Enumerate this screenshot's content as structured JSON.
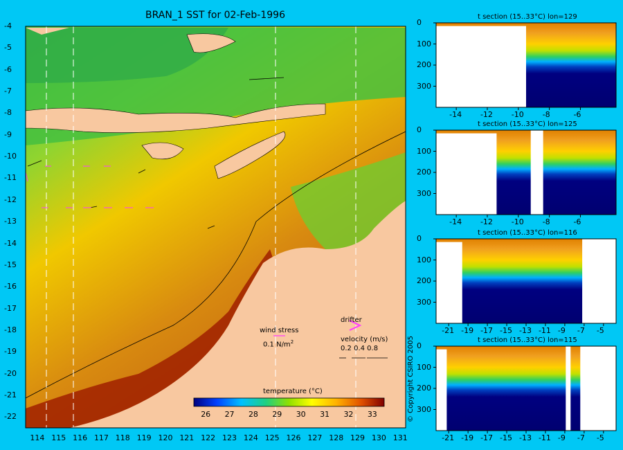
{
  "map": {
    "title": "BRAN_1 SST for 02-Feb-1996",
    "lat_ticks": [
      "-4",
      "-5",
      "-6",
      "-7",
      "-8",
      "-9",
      "-10",
      "-11",
      "-12",
      "-13",
      "-14",
      "-15",
      "-16",
      "-17",
      "-18",
      "-19",
      "-20",
      "-21",
      "-22"
    ],
    "lon_ticks": [
      "114",
      "115",
      "116",
      "117",
      "118",
      "119",
      "120",
      "121",
      "122",
      "123",
      "124",
      "125",
      "126",
      "127",
      "128",
      "129",
      "130",
      "131"
    ],
    "wind_label": "wind stress",
    "wind_value": "0.1 N/m",
    "wind_unit_sup": "2",
    "drifter_label": "drifter",
    "velocity_label": "velocity (m/s)",
    "velocity_scale": "0.2 0.4 0.8",
    "colorbar_title": "temperature (°C)",
    "colorbar_ticks": [
      "26",
      "27",
      "28",
      "29",
      "30",
      "31",
      "32",
      "33"
    ],
    "colors": {
      "background": "#00c8f5",
      "land": "#f8c8a0",
      "drifter": "#ff3cff"
    }
  },
  "copyright": "© Copyright CSIRO 2005",
  "chart_data": [
    {
      "type": "heatmap",
      "title": "BRAN_1 SST for 02-Feb-1996",
      "x_range": [
        113.5,
        131.3
      ],
      "y_range": [
        -22.5,
        -4
      ],
      "colorbar_range": [
        25.5,
        33.5
      ],
      "colorbar_label": "temperature (°C)"
    },
    {
      "type": "heatmap",
      "title": "t section (15..33°C) lon=129",
      "x_ticks": [
        "-14",
        "-12",
        "-10",
        "-8",
        "-6"
      ],
      "x_range": [
        -15.3,
        -3.7
      ],
      "y_ticks": [
        "0",
        "100",
        "200",
        "300"
      ],
      "y_range": [
        0,
        400
      ],
      "land_breaks": [
        [
          -15.3,
          -9.5
        ]
      ],
      "thermocline_depth": 150
    },
    {
      "type": "heatmap",
      "title": "t section (15..33°C) lon=125",
      "x_ticks": [
        "-14",
        "-12",
        "-10",
        "-8",
        "-6"
      ],
      "x_range": [
        -15.3,
        -3.7
      ],
      "y_ticks": [
        "0",
        "100",
        "200",
        "300"
      ],
      "y_range": [
        0,
        400
      ],
      "land_breaks": [
        [
          -15.3,
          -11.4
        ],
        [
          -9.2,
          -8.4
        ]
      ],
      "thermocline_depth": 160
    },
    {
      "type": "heatmap",
      "title": "t section (15..33°C) lon=116",
      "x_ticks": [
        "-21",
        "-19",
        "-17",
        "-15",
        "-13",
        "-11",
        "-9",
        "-7",
        "-5"
      ],
      "x_range": [
        -22.3,
        -3.7
      ],
      "y_ticks": [
        "0",
        "100",
        "200",
        "300"
      ],
      "y_range": [
        0,
        400
      ],
      "land_breaks": [
        [
          -22.3,
          -19.6
        ],
        [
          -7.2,
          -3.7
        ]
      ],
      "thermocline_depth": 130
    },
    {
      "type": "heatmap",
      "title": "t section (15..33°C) lon=115",
      "x_ticks": [
        "-21",
        "-19",
        "-17",
        "-15",
        "-13",
        "-11",
        "-9",
        "-7",
        "-5"
      ],
      "x_range": [
        -22.3,
        -3.7
      ],
      "y_ticks": [
        "0",
        "100",
        "200",
        "300"
      ],
      "y_range": [
        0,
        400
      ],
      "land_breaks": [
        [
          -22.3,
          -21.2
        ],
        [
          -8.9,
          -8.4
        ],
        [
          -7.4,
          -3.7
        ]
      ],
      "thermocline_depth": 140
    }
  ]
}
